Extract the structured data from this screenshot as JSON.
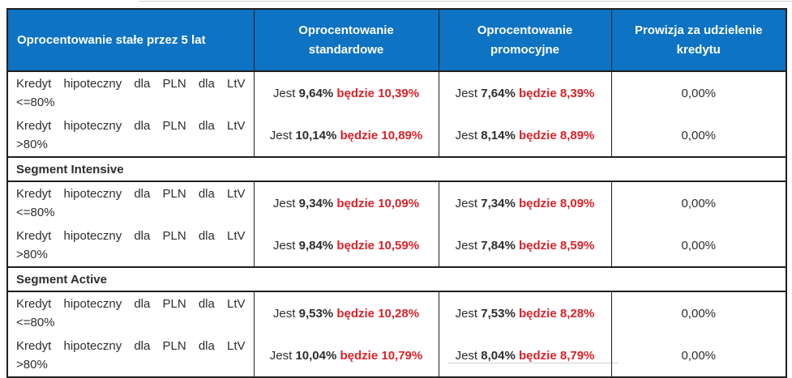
{
  "labels": {
    "current_prefix": "Jest",
    "future_prefix": "będzie"
  },
  "colors": {
    "header_bg": "#0d73c2",
    "header_text": "#ffffff",
    "future_rate_red": "#d8232a",
    "body_text": "#2d2d2d",
    "border": "#1f1f1f"
  },
  "table": {
    "header": {
      "col1": "Oprocentowanie stałe przez 5 lat",
      "col2": {
        "line1": "Oprocentowanie",
        "line2": "standardowe"
      },
      "col3": {
        "line1": "Oprocentowanie",
        "line2": "promocyjne"
      },
      "col4": {
        "line1": "Prowizja za udzielenie",
        "line2": "kredytu"
      }
    },
    "segments": [
      {
        "rows": [
          {
            "product_line1": "Kredyt hipoteczny dla PLN dla LtV",
            "product_line2": "<=80%",
            "standard_current": "9,64%",
            "standard_future": "10,39%",
            "promo_current": "7,64%",
            "promo_future": "8,39%",
            "fee": "0,00%"
          },
          {
            "product_line1": "Kredyt hipoteczny dla PLN dla LtV",
            "product_line2": ">80%",
            "standard_current": "10,14%",
            "standard_future": "10,89%",
            "promo_current": "8,14%",
            "promo_future": "8,89%",
            "fee": "0,00%"
          }
        ]
      },
      {
        "title": "Segment Intensive",
        "rows": [
          {
            "product_line1": "Kredyt hipoteczny dla PLN dla LtV",
            "product_line2": "<=80%",
            "standard_current": "9,34%",
            "standard_future": "10,09%",
            "promo_current": "7,34%",
            "promo_future": "8,09%",
            "fee": "0,00%"
          },
          {
            "product_line1": "Kredyt hipoteczny dla PLN dla LtV",
            "product_line2": ">80%",
            "standard_current": "9,84%",
            "standard_future": "10,59%",
            "promo_current": "7,84%",
            "promo_future": "8,59%",
            "fee": "0,00%"
          }
        ]
      },
      {
        "title": "Segment Active",
        "rows": [
          {
            "product_line1": "Kredyt hipoteczny dla PLN dla LtV",
            "product_line2": "<=80%",
            "standard_current": "9,53%",
            "standard_future": "10,28%",
            "promo_current": "7,53%",
            "promo_future": "8,28%",
            "fee": "0,00%"
          },
          {
            "product_line1": "Kredyt hipoteczny dla PLN dla LtV",
            "product_line2": ">80%",
            "standard_current": "10,04%",
            "standard_future": "10,79%",
            "promo_current": "8,04%",
            "promo_future": "8,79%",
            "fee": "0,00%"
          }
        ]
      }
    ]
  }
}
